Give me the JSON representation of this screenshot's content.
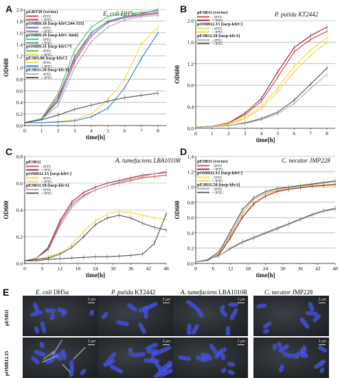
{
  "colors": {
    "red": "#d43a3a",
    "purple": "#9b3ea0",
    "teal": "#2a9aa3",
    "green": "#58b858",
    "yellow": "#f4d53a",
    "blue": "#2f78c8",
    "lightgray": "#a8a8a8",
    "darkgray": "#4a4a4a",
    "darkred": "#8c1e3c"
  },
  "chart_data": [
    {
      "panel": "A",
      "type": "line",
      "title": "E. coli DH5α",
      "xlabel": "time[h]",
      "ylabel": "OD600",
      "xlim": [
        0,
        8.5
      ],
      "ylim": [
        0,
        2.0
      ],
      "xticks": [
        0,
        1,
        2,
        3,
        4,
        5,
        6,
        7,
        8
      ],
      "yticks": [
        0.0,
        0.2,
        0.4,
        0.6,
        0.8,
        1.0,
        1.2,
        1.4,
        1.6,
        1.8,
        2.0
      ],
      "ytick_labels": [
        "0.0",
        "0.2",
        "0.4",
        "0.6",
        "0.8",
        "1.0",
        "1.2",
        "1.4",
        "1.6",
        "1.8",
        "2.0"
      ],
      "legend": [
        {
          "text": "pGBT30 (vector)",
          "sub": [
            {
              "text": "- IPTG",
              "color": "red"
            },
            {
              "text": "+ IPTG",
              "color": "purple"
            }
          ]
        },
        {
          "text": "pOMB9.18 [tacp-kfrC244-355]",
          "sub": [
            {
              "text": "- IPTG",
              "color": "purple"
            },
            {
              "text": "+ IPTG",
              "color": "teal"
            }
          ]
        },
        {
          "text": "pOMB9.29 [tacp-kfrC-his6]",
          "sub": [
            {
              "text": "- IPTG",
              "color": "green"
            },
            {
              "text": "+ IPTG",
              "color": "teal"
            }
          ]
        },
        {
          "text": "pOMB9.31 [tacp-kfrC*]",
          "sub": [
            {
              "text": "- IPTG",
              "color": "green"
            },
            {
              "text": "+ IPTG",
              "color": "yellow"
            }
          ]
        },
        {
          "text": "pESB5.88 [tacp-kfrC]",
          "sub": [
            {
              "text": "- IPTG",
              "color": "yellow"
            },
            {
              "text": "+ IPTG",
              "color": "blue"
            }
          ]
        },
        {
          "text": "pESB11.58 [tacp-kfrA]",
          "sub": [
            {
              "text": "- IPTG",
              "color": "lightgray"
            },
            {
              "text": "+ IPTG",
              "color": "darkgray"
            }
          ]
        }
      ],
      "x": [
        0,
        1,
        2,
        3,
        4,
        5,
        6,
        7,
        8
      ],
      "series": [
        {
          "color": "red",
          "values": [
            0.05,
            0.1,
            0.5,
            1.15,
            1.6,
            1.8,
            1.88,
            1.92,
            1.95
          ]
        },
        {
          "color": "purple",
          "values": [
            0.05,
            0.1,
            0.42,
            1.1,
            1.55,
            1.78,
            1.86,
            1.9,
            1.93
          ]
        },
        {
          "color": "green",
          "values": [
            0.05,
            0.12,
            0.55,
            1.3,
            1.7,
            1.88,
            1.93,
            1.95,
            1.98
          ]
        },
        {
          "color": "teal",
          "values": [
            0.05,
            0.1,
            0.45,
            1.2,
            1.6,
            1.8,
            1.88,
            1.93,
            2.0
          ]
        },
        {
          "color": "lightgray",
          "values": [
            0.05,
            0.1,
            0.35,
            1.0,
            1.45,
            1.7,
            1.82,
            1.88,
            1.9
          ]
        },
        {
          "color": "yellow",
          "values": [
            0.05,
            0.05,
            0.07,
            0.1,
            0.2,
            0.45,
            0.8,
            1.4,
            1.7
          ]
        },
        {
          "color": "blue",
          "values": [
            0.05,
            0.05,
            0.06,
            0.08,
            0.15,
            0.3,
            0.65,
            1.15,
            1.6
          ]
        },
        {
          "color": "darkgray",
          "values": [
            0.05,
            0.1,
            0.18,
            0.28,
            0.35,
            0.42,
            0.48,
            0.52,
            0.56
          ]
        }
      ]
    },
    {
      "panel": "B",
      "type": "line",
      "title": "P. putida KT2442",
      "xlabel": "time[h]",
      "ylabel": "OD600",
      "xlim": [
        0,
        8.5
      ],
      "ylim": [
        0,
        2.0
      ],
      "xticks": [
        0,
        1,
        2,
        3,
        4,
        5,
        6,
        7,
        8
      ],
      "yticks": [
        0.0,
        0.4,
        0.8,
        1.2,
        1.6,
        2.0
      ],
      "ytick_labels": [
        "0.0",
        "0.4",
        "0.8",
        "1.2",
        "1.6",
        "2.0"
      ],
      "legend": [
        {
          "text": "pESB11 (vector)",
          "sub": [
            {
              "text": "- IPTG",
              "color": "red"
            },
            {
              "text": "+ IPTG",
              "color": "darkred"
            }
          ]
        },
        {
          "text": "pOMB12.15 [tacp-kfrC]",
          "sub": [
            {
              "text": "- IPTG",
              "color": "yellow"
            },
            {
              "text": "+ IPTG",
              "color": "yellow"
            }
          ]
        },
        {
          "text": "pESB11.58 [tacp-kfrA]",
          "sub": [
            {
              "text": "- IPTG",
              "color": "lightgray"
            },
            {
              "text": "+ IPTG",
              "color": "darkgray"
            }
          ]
        }
      ],
      "x": [
        0,
        1,
        2,
        3,
        4,
        5,
        6,
        7,
        8
      ],
      "series": [
        {
          "color": "darkred",
          "values": [
            0.02,
            0.04,
            0.1,
            0.28,
            0.55,
            1.05,
            1.5,
            1.72,
            1.88
          ]
        },
        {
          "color": "red",
          "values": [
            0.02,
            0.04,
            0.1,
            0.25,
            0.5,
            0.95,
            1.42,
            1.65,
            1.8
          ]
        },
        {
          "color": "yellow",
          "values": [
            0.02,
            0.04,
            0.08,
            0.2,
            0.4,
            0.75,
            1.15,
            1.45,
            1.68
          ]
        },
        {
          "color": "yellow",
          "values": [
            0.02,
            0.04,
            0.07,
            0.18,
            0.36,
            0.68,
            1.05,
            1.35,
            1.6
          ]
        },
        {
          "color": "darkgray",
          "values": [
            0.02,
            0.03,
            0.05,
            0.1,
            0.18,
            0.3,
            0.52,
            0.82,
            1.12
          ]
        },
        {
          "color": "lightgray",
          "values": [
            0.02,
            0.03,
            0.05,
            0.09,
            0.16,
            0.27,
            0.46,
            0.74,
            1.0
          ]
        }
      ]
    },
    {
      "panel": "C",
      "type": "line",
      "title": "A. tumefaciens LBA1010R",
      "xlabel": "time[h]",
      "ylabel": "OD600",
      "xlim": [
        0,
        48
      ],
      "ylim": [
        0,
        0.8
      ],
      "xticks": [
        0,
        6,
        12,
        18,
        24,
        30,
        36,
        42,
        48
      ],
      "yticks": [
        0.0,
        0.2,
        0.4,
        0.6,
        0.8
      ],
      "ytick_labels": [
        "0.0",
        "0.2",
        "0.4",
        "0.6",
        "0.8"
      ],
      "legend": [
        {
          "text": "pESB11",
          "sub": [
            {
              "text": "- IPTG",
              "color": "red"
            },
            {
              "text": "+ IPTG",
              "color": "darkred"
            }
          ]
        },
        {
          "text": "pOMB12.15 [tacp-kfrC]",
          "sub": [
            {
              "text": "- IPTG",
              "color": "yellow"
            },
            {
              "text": "+ IPTG",
              "color": "yellow"
            }
          ]
        },
        {
          "text": "pESB11.58 [tacp-kfrA]",
          "sub": [
            {
              "text": "- IPTG",
              "color": "lightgray"
            },
            {
              "text": "+ IPTG",
              "color": "darkgray"
            }
          ]
        }
      ],
      "x": [
        0,
        4,
        8,
        12,
        16,
        20,
        24,
        28,
        32,
        36,
        40,
        44,
        48
      ],
      "series": [
        {
          "color": "darkred",
          "values": [
            0.02,
            0.04,
            0.12,
            0.32,
            0.46,
            0.53,
            0.57,
            0.6,
            0.62,
            0.64,
            0.66,
            0.67,
            0.68
          ]
        },
        {
          "color": "red",
          "values": [
            0.02,
            0.04,
            0.11,
            0.3,
            0.44,
            0.51,
            0.55,
            0.58,
            0.6,
            0.62,
            0.64,
            0.65,
            0.66
          ]
        },
        {
          "color": "lightgray",
          "values": [
            0.02,
            0.04,
            0.1,
            0.28,
            0.42,
            0.5,
            0.55,
            0.58,
            0.61,
            0.63,
            0.65,
            0.67,
            0.69
          ]
        },
        {
          "color": "yellow",
          "values": [
            0.02,
            0.03,
            0.05,
            0.08,
            0.14,
            0.24,
            0.32,
            0.37,
            0.39,
            0.38,
            0.36,
            0.34,
            0.33
          ]
        },
        {
          "color": "darkgray",
          "values": [
            0.02,
            0.03,
            0.04,
            0.07,
            0.12,
            0.2,
            0.29,
            0.34,
            0.36,
            0.34,
            0.3,
            0.27,
            0.25
          ]
        },
        {
          "color": "darkgray",
          "values": [
            0.02,
            0.02,
            0.03,
            0.035,
            0.04,
            0.045,
            0.05,
            0.05,
            0.055,
            0.06,
            0.07,
            0.15,
            0.37
          ]
        }
      ]
    },
    {
      "panel": "D",
      "type": "line",
      "title": "C. necator JMP228",
      "xlabel": "time[h]",
      "ylabel": "OD600",
      "xlim": [
        0,
        48
      ],
      "ylim": [
        0,
        1.4
      ],
      "xticks": [
        0,
        6,
        12,
        18,
        24,
        30,
        36,
        42,
        48
      ],
      "yticks": [
        0.0,
        0.2,
        0.4,
        0.6,
        0.8,
        1.0,
        1.2,
        1.4
      ],
      "ytick_labels": [
        "0.0",
        "0.2",
        "0.4",
        "0.6",
        "0.8",
        "1.0",
        "1.2",
        "1.4"
      ],
      "legend": [
        {
          "text": "pESB11 (vector)",
          "sub": [
            {
              "text": "- IPTG",
              "color": "red"
            },
            {
              "text": "+ IPTG",
              "color": "darkred"
            }
          ]
        },
        {
          "text": "pOMB12.15 [tacp-kfrC]",
          "sub": [
            {
              "text": "- IPTG",
              "color": "yellow"
            },
            {
              "text": "+ IPTG",
              "color": "yellow"
            }
          ]
        },
        {
          "text": "pESB11.58 [tacp-kfrA]",
          "sub": [
            {
              "text": "- IPTG",
              "color": "lightgray"
            },
            {
              "text": "+ IPTG",
              "color": "darkgray"
            }
          ]
        }
      ],
      "x": [
        0,
        4,
        8,
        12,
        16,
        20,
        24,
        28,
        32,
        36,
        40,
        44,
        48
      ],
      "series": [
        {
          "color": "darkgray",
          "values": [
            0.02,
            0.05,
            0.15,
            0.42,
            0.7,
            0.86,
            0.94,
            0.98,
            1.0,
            1.02,
            1.04,
            1.06,
            1.08
          ]
        },
        {
          "color": "lightgray",
          "values": [
            0.02,
            0.04,
            0.13,
            0.38,
            0.66,
            0.84,
            0.92,
            0.96,
            0.99,
            1.01,
            1.03,
            1.05,
            1.07
          ]
        },
        {
          "color": "yellow",
          "values": [
            0.02,
            0.04,
            0.12,
            0.36,
            0.62,
            0.8,
            0.9,
            0.95,
            0.98,
            1.0,
            1.02,
            1.03,
            1.04
          ]
        },
        {
          "color": "darkred",
          "values": [
            0.02,
            0.04,
            0.11,
            0.34,
            0.6,
            0.78,
            0.88,
            0.94,
            0.97,
            0.99,
            1.01,
            1.02,
            1.03
          ]
        },
        {
          "color": "darkgray",
          "values": [
            0.02,
            0.05,
            0.1,
            0.2,
            0.28,
            0.34,
            0.4,
            0.46,
            0.52,
            0.58,
            0.64,
            0.69,
            0.72
          ]
        },
        {
          "color": "lightgray",
          "values": [
            0.02,
            0.05,
            0.1,
            0.19,
            0.27,
            0.33,
            0.39,
            0.45,
            0.51,
            0.57,
            0.63,
            0.68,
            0.71
          ]
        }
      ]
    }
  ],
  "microscopy": {
    "letter": "E",
    "scale_label": "2 µm",
    "columns": [
      {
        "italic": "E. coli",
        "rest": " DH5α"
      },
      {
        "italic": "P. putida",
        "rest": " KT2442"
      },
      {
        "italic": "A. tumefaciens",
        "rest": " LBA1010R"
      },
      {
        "italic": "C. necator",
        "rest": " JMP228"
      }
    ],
    "rows": [
      "pESB11",
      "pOMB12.15"
    ]
  }
}
